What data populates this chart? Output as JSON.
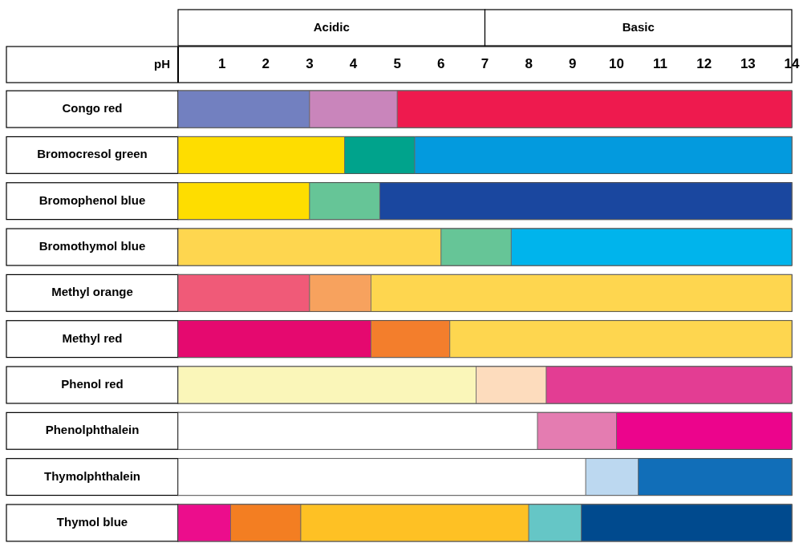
{
  "chart_data": {
    "type": "bar",
    "orientation": "horizontal",
    "stacked": true,
    "xlabel": "pH",
    "categories": [
      "Congo red",
      "Bromocresol green",
      "Bromophenol blue",
      "Bromothymol blue",
      "Methyl orange",
      "Methyl red",
      "Phenol red",
      "Phenolphthalein",
      "Thymolphthalein",
      "Thymol blue"
    ],
    "xlim": [
      0,
      14
    ],
    "xticks": [
      1,
      2,
      3,
      4,
      5,
      6,
      7,
      8,
      9,
      10,
      11,
      12,
      13,
      14
    ],
    "annotations": [
      "Acidic",
      "Basic"
    ],
    "series": [
      {
        "values": [
          3,
          3.8,
          3,
          6,
          3,
          4.4,
          6.8,
          8.2,
          9.3,
          1.2
        ],
        "colors": [
          "#7280c0",
          "#fedd00",
          "#fedd00",
          "#fed64f",
          "#f05a78",
          "#e5096f",
          "#faf6b9",
          "#ffffff",
          "#ffffff",
          "#ec0d8c"
        ]
      },
      {
        "values": [
          2,
          1.6,
          1.6,
          1.6,
          1.4,
          1.8,
          1.6,
          1.8,
          1.2,
          1.6
        ],
        "colors": [
          "#c985bb",
          "#00a38c",
          "#66c597",
          "#66c597",
          "#f7a25e",
          "#f37e2c",
          "#fddcbd",
          "#e47cb1",
          "#bcd8f0",
          "#f37e22"
        ]
      },
      {
        "values": [
          9,
          8.6,
          9.4,
          6.4,
          9.6,
          7.8,
          5.6,
          4,
          3.5,
          5.2
        ],
        "colors": [
          "#ee1a4e",
          "#039ade",
          "#1a479f",
          "#00b4ec",
          "#fed64f",
          "#fed64f",
          "#e33d93",
          "#ec048c",
          "#116eb8",
          "#fec124"
        ]
      },
      {
        "values": [
          null,
          null,
          null,
          null,
          null,
          null,
          null,
          null,
          null,
          1.2
        ],
        "colors": [
          null,
          null,
          null,
          null,
          null,
          null,
          null,
          null,
          null,
          "#65c6c6"
        ]
      },
      {
        "values": [
          null,
          null,
          null,
          null,
          null,
          null,
          null,
          null,
          null,
          4.8
        ],
        "colors": [
          null,
          null,
          null,
          null,
          null,
          null,
          null,
          null,
          null,
          "#004a8e"
        ]
      }
    ]
  }
}
